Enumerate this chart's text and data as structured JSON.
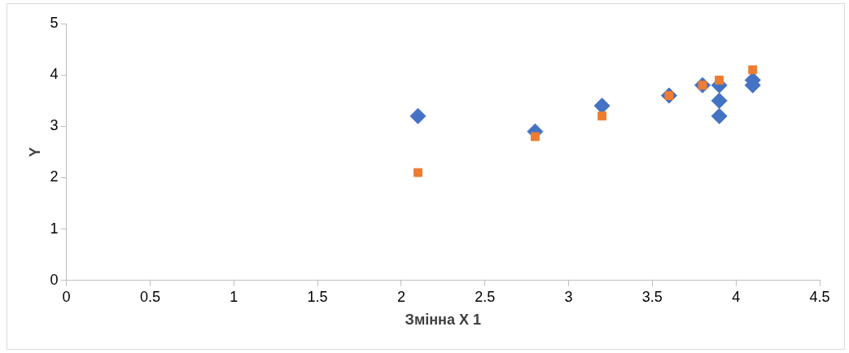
{
  "chart_data": {
    "type": "scatter",
    "xlabel": "Змінна X 1",
    "ylabel": "Y",
    "xlim": [
      0,
      4.5
    ],
    "xticks": [
      0,
      0.5,
      1,
      1.5,
      2,
      2.5,
      3,
      3.5,
      4,
      4.5
    ],
    "ylim": [
      0,
      5
    ],
    "yticks": [
      0,
      1,
      2,
      3,
      4,
      5
    ],
    "grid": false,
    "legend": false,
    "series": [
      {
        "color": "#4472c4",
        "marker": "diamond",
        "x": [
          2.1,
          2.8,
          3.2,
          3.6,
          3.8,
          3.9,
          3.9,
          3.9,
          4.1,
          4.1
        ],
        "values": [
          3.2,
          2.9,
          3.4,
          3.6,
          3.8,
          3.8,
          3.5,
          3.2,
          3.9,
          3.8
        ]
      },
      {
        "color": "#ed7d31",
        "marker": "square",
        "x": [
          2.1,
          2.8,
          3.2,
          3.6,
          3.8,
          3.9,
          4.1
        ],
        "values": [
          2.1,
          2.8,
          3.2,
          3.6,
          3.8,
          3.9,
          4.1
        ]
      }
    ]
  }
}
